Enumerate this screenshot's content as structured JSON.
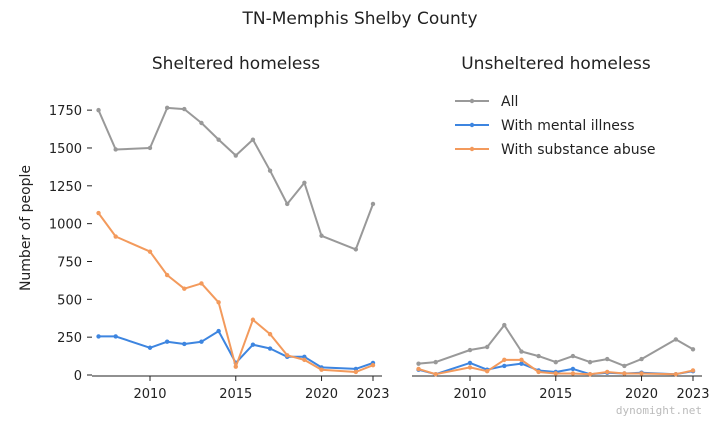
{
  "chart_data": {
    "type": "line",
    "title": "TN-Memphis Shelby County",
    "ylabel": "Number of people",
    "ylim": [
      0,
      1850
    ],
    "yticks": [
      0,
      250,
      500,
      750,
      1000,
      1250,
      1500,
      1750
    ],
    "xticks": [
      "2010",
      "2015",
      "2020",
      "2023"
    ],
    "legend": {
      "placement": "top-right",
      "entries": [
        "All",
        "With mental illness",
        "With substance abuse"
      ]
    },
    "colors": {
      "All": "#999999",
      "With mental illness": "#3d85e0",
      "With substance abuse": "#f39a5c"
    },
    "panels": [
      {
        "title": "Sheltered homeless",
        "series": [
          {
            "name": "All",
            "points": [
              [
                2007,
                1750
              ],
              [
                2008,
                1490
              ],
              [
                2010,
                1500
              ],
              [
                2011,
                1765
              ],
              [
                2012,
                1757
              ],
              [
                2013,
                1665
              ],
              [
                2014,
                1555
              ],
              [
                2015,
                1450
              ],
              [
                2016,
                1555
              ],
              [
                2017,
                1350
              ],
              [
                2018,
                1130
              ],
              [
                2019,
                1270
              ],
              [
                2020,
                920
              ],
              [
                2022,
                830
              ],
              [
                2023,
                1130
              ]
            ]
          },
          {
            "name": "With mental illness",
            "points": [
              [
                2007,
                255
              ],
              [
                2008,
                255
              ],
              [
                2010,
                180
              ],
              [
                2011,
                220
              ],
              [
                2012,
                205
              ],
              [
                2013,
                220
              ],
              [
                2014,
                290
              ],
              [
                2015,
                80
              ],
              [
                2016,
                200
              ],
              [
                2017,
                175
              ],
              [
                2018,
                120
              ],
              [
                2019,
                120
              ],
              [
                2020,
                50
              ],
              [
                2022,
                40
              ],
              [
                2023,
                80
              ]
            ]
          },
          {
            "name": "With substance abuse",
            "points": [
              [
                2007,
                1070
              ],
              [
                2008,
                915
              ],
              [
                2010,
                815
              ],
              [
                2011,
                660
              ],
              [
                2012,
                570
              ],
              [
                2013,
                605
              ],
              [
                2014,
                480
              ],
              [
                2015,
                55
              ],
              [
                2016,
                365
              ],
              [
                2017,
                270
              ],
              [
                2018,
                130
              ],
              [
                2019,
                100
              ],
              [
                2020,
                35
              ],
              [
                2022,
                20
              ],
              [
                2023,
                65
              ]
            ]
          }
        ]
      },
      {
        "title": "Unsheltered homeless",
        "series": [
          {
            "name": "All",
            "points": [
              [
                2007,
                75
              ],
              [
                2008,
                85
              ],
              [
                2010,
                165
              ],
              [
                2011,
                185
              ],
              [
                2012,
                330
              ],
              [
                2013,
                155
              ],
              [
                2014,
                125
              ],
              [
                2015,
                85
              ],
              [
                2016,
                125
              ],
              [
                2017,
                85
              ],
              [
                2018,
                105
              ],
              [
                2019,
                60
              ],
              [
                2020,
                105
              ],
              [
                2022,
                235
              ],
              [
                2023,
                170
              ]
            ]
          },
          {
            "name": "With mental illness",
            "points": [
              [
                2007,
                35
              ],
              [
                2008,
                5
              ],
              [
                2010,
                80
              ],
              [
                2011,
                35
              ],
              [
                2012,
                60
              ],
              [
                2013,
                75
              ],
              [
                2014,
                30
              ],
              [
                2015,
                20
              ],
              [
                2016,
                40
              ],
              [
                2017,
                5
              ],
              [
                2018,
                15
              ],
              [
                2019,
                10
              ],
              [
                2020,
                15
              ],
              [
                2022,
                5
              ],
              [
                2023,
                25
              ]
            ]
          },
          {
            "name": "With substance abuse",
            "points": [
              [
                2007,
                40
              ],
              [
                2008,
                5
              ],
              [
                2010,
                50
              ],
              [
                2011,
                25
              ],
              [
                2012,
                100
              ],
              [
                2013,
                100
              ],
              [
                2014,
                20
              ],
              [
                2015,
                10
              ],
              [
                2016,
                10
              ],
              [
                2017,
                5
              ],
              [
                2018,
                20
              ],
              [
                2019,
                10
              ],
              [
                2020,
                10
              ],
              [
                2022,
                5
              ],
              [
                2023,
                30
              ]
            ]
          }
        ]
      }
    ],
    "watermark": "dynomight.net"
  }
}
